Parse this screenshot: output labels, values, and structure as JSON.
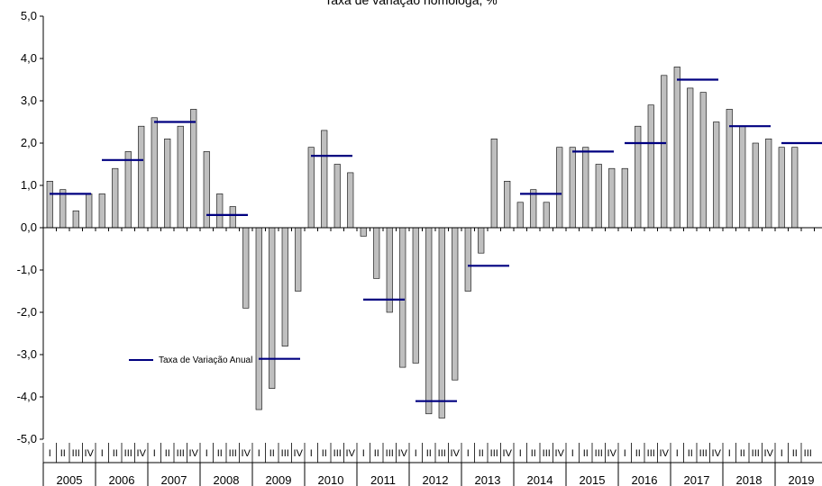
{
  "chart_data": {
    "type": "bar",
    "title": "Taxa de variação homóloga, %",
    "ylim": [
      -5,
      5
    ],
    "yticks": [
      "5,0",
      "4,0",
      "3,0",
      "2,0",
      "1,0",
      "0,0",
      "-1,0",
      "-2,0",
      "-3,0",
      "-4,0",
      "-5,0"
    ],
    "quarter_labels": [
      "I",
      "II",
      "III",
      "IV"
    ],
    "years": [
      "2005",
      "2006",
      "2007",
      "2008",
      "2009",
      "2010",
      "2011",
      "2012",
      "2013",
      "2014",
      "2015",
      "2016",
      "2017",
      "2018",
      "2019"
    ],
    "series": [
      {
        "values": [
          1.1,
          0.9,
          0.4,
          0.8,
          0.8,
          1.4,
          1.8,
          2.4,
          2.6,
          2.1,
          2.4,
          2.8,
          1.8,
          0.8,
          0.5,
          -1.9,
          -4.3,
          -3.8,
          -2.8,
          -1.5,
          1.9,
          2.3,
          1.5,
          1.3,
          -0.2,
          -1.2,
          -2.0,
          -3.3,
          -3.2,
          -4.4,
          -4.5,
          -3.6,
          -1.5,
          -0.6,
          2.1,
          1.1,
          0.6,
          0.9,
          0.6,
          1.9,
          1.9,
          1.9,
          1.5,
          1.4,
          1.4,
          2.4,
          2.9,
          3.6,
          3.8,
          3.3,
          3.2,
          2.5,
          2.8,
          2.4,
          2.0,
          2.1,
          1.9,
          1.9
        ],
        "color": "#bfbfbf"
      },
      {
        "name": "Taxa de Variação Anual",
        "values": [
          0.8,
          1.6,
          2.5,
          0.3,
          -3.1,
          1.7,
          -1.7,
          -4.1,
          -0.9,
          0.8,
          1.8,
          2.0,
          3.5,
          2.4,
          2.0
        ],
        "color": "#000080"
      }
    ],
    "grid": false,
    "legend": "left"
  }
}
